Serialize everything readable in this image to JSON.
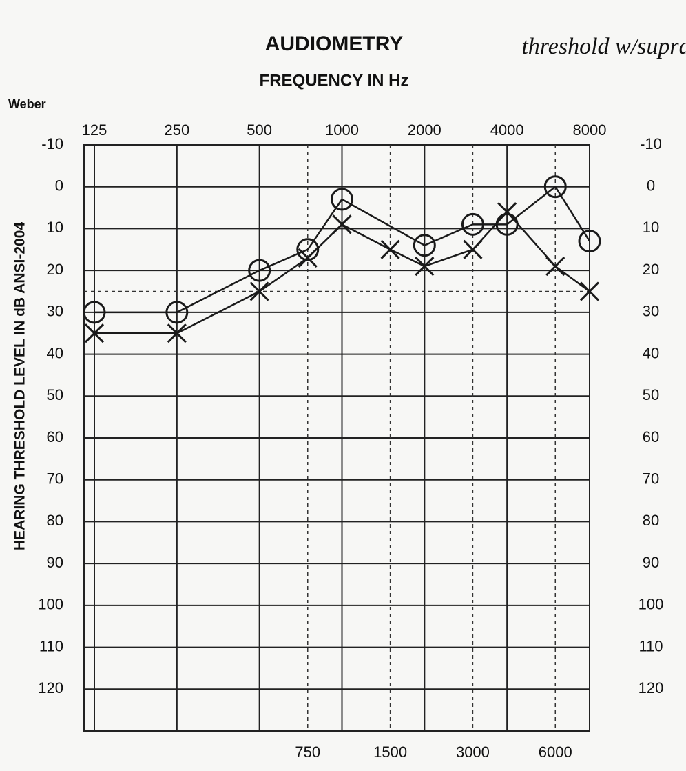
{
  "chart_data": {
    "type": "audiogram",
    "title": "AUDIOMETRY",
    "subtitle": "FREQUENCY IN Hz",
    "corner_label": "Weber",
    "y_label": "HEARING THRESHOLD LEVEL IN dB ANSI-2004",
    "annotation": "threshold w/supra",
    "x_log": true,
    "y_inverted": true,
    "xlim": [
      125,
      8000
    ],
    "ylim": [
      -10,
      130
    ],
    "xticks": [
      125,
      250,
      500,
      1000,
      2000,
      4000,
      8000
    ],
    "xticks_minor": [
      750,
      1500,
      3000,
      6000
    ],
    "yticks": [
      -10,
      0,
      10,
      20,
      30,
      40,
      50,
      60,
      70,
      80,
      90,
      100,
      110,
      120
    ],
    "reference_line": 25,
    "grid": true,
    "series": [
      {
        "marker": "O",
        "color": "#1a1a1a",
        "x": [
          125,
          250,
          500,
          750,
          1000,
          2000,
          3000,
          4000,
          6000,
          8000
        ],
        "values": [
          30,
          30,
          20,
          15,
          3,
          14,
          9,
          9,
          0,
          13
        ]
      },
      {
        "marker": "X",
        "color": "#1a1a1a",
        "x": [
          125,
          250,
          500,
          750,
          1000,
          1500,
          2000,
          3000,
          4000,
          6000,
          8000
        ],
        "values": [
          35,
          35,
          25,
          17,
          9,
          15,
          19,
          15,
          6,
          19,
          25
        ]
      }
    ]
  }
}
